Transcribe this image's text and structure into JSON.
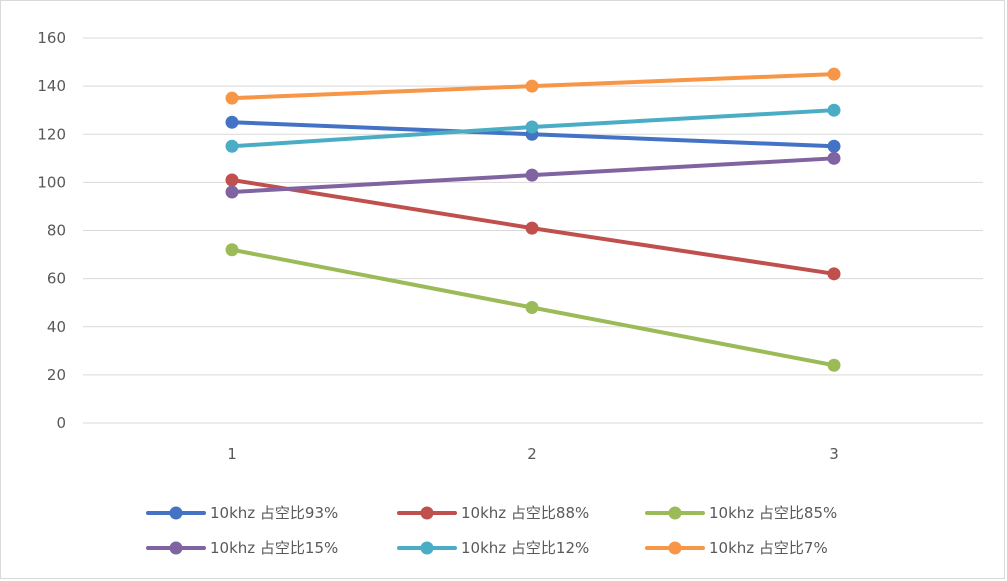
{
  "chart_data": {
    "type": "line",
    "x": [
      1,
      2,
      3
    ],
    "x_tick_labels": [
      "1",
      "2",
      "3"
    ],
    "y_ticks": [
      0,
      20,
      40,
      60,
      80,
      100,
      120,
      140,
      160
    ],
    "ylim": [
      0,
      160
    ],
    "grid": true,
    "legend_position": "bottom",
    "series": [
      {
        "name": "10khz 占空比93%",
        "color": "#4472c4",
        "values": [
          125,
          120,
          115
        ]
      },
      {
        "name": "10khz 占空比88%",
        "color": "#c0504d",
        "values": [
          101,
          81,
          62
        ]
      },
      {
        "name": "10khz 占空比85%",
        "color": "#9bbb59",
        "values": [
          72,
          48,
          24
        ]
      },
      {
        "name": "10khz 占空比15%",
        "color": "#8064a2",
        "values": [
          96,
          103,
          110
        ]
      },
      {
        "name": "10khz 占空比12%",
        "color": "#4bacc6",
        "values": [
          115,
          123,
          130
        ]
      },
      {
        "name": "10khz 占空比7%",
        "color": "#f79646",
        "values": [
          135,
          140,
          145
        ]
      }
    ]
  }
}
